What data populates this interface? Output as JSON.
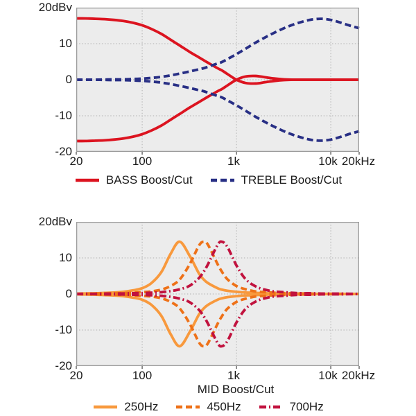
{
  "page": {
    "background": "#ffffff",
    "plot_bg": "#ececec",
    "grid_color": "#b0b0b0",
    "border_color": "#9b9b9b",
    "text_color": "#1a1a1a"
  },
  "chart_data": [
    {
      "type": "line",
      "name": "bass-treble-response",
      "title": "",
      "xlabel": "",
      "x_scale": "log",
      "x_unit": "Hz",
      "y_unit": "dBv",
      "x_range": [
        20,
        20000
      ],
      "y_range": [
        -20,
        20
      ],
      "grid": {
        "on": true,
        "style": "dotted",
        "x_values": [
          100,
          1000,
          10000
        ],
        "y_values": [
          10,
          0,
          -10
        ]
      },
      "y_ticks": [
        {
          "value": 20,
          "label": "20dBv"
        },
        {
          "value": 10,
          "label": "10"
        },
        {
          "value": 0,
          "label": "0"
        },
        {
          "value": -10,
          "label": "-10"
        },
        {
          "value": -20,
          "label": "-20"
        }
      ],
      "x_ticks": [
        {
          "value": 20,
          "label": "20"
        },
        {
          "value": 100,
          "label": "100"
        },
        {
          "value": 1000,
          "label": "1k"
        },
        {
          "value": 10000,
          "label": "10k"
        },
        {
          "value": 20000,
          "label": "20kHz"
        }
      ],
      "legend_position": "bottom",
      "legend": [
        {
          "label": "BASS Boost/Cut",
          "color": "#dc1420",
          "line": "solid"
        },
        {
          "label": "TREBLE Boost/Cut",
          "color": "#282f85",
          "line": "dashed"
        }
      ],
      "x": [
        20,
        25,
        32,
        40,
        50,
        63,
        80,
        100,
        125,
        160,
        200,
        250,
        320,
        400,
        450,
        500,
        630,
        700,
        800,
        1000,
        1250,
        1600,
        2000,
        2500,
        3200,
        4000,
        5000,
        6300,
        8000,
        10000,
        12500,
        16000,
        20000
      ],
      "series": [
        {
          "name": "BASS boost",
          "color": "#dc1420",
          "line": "solid",
          "values": [
            17,
            17,
            16.9,
            16.8,
            16.6,
            16.3,
            15.8,
            15.1,
            14.1,
            12.7,
            11.1,
            9.5,
            7.7,
            6.2,
            5.4,
            4.7,
            3.2,
            2.6,
            1.6,
            0,
            -0.9,
            -1.05,
            -0.7,
            -0.35,
            -0.1,
            0,
            0,
            0,
            0,
            0,
            0,
            0,
            0
          ]
        },
        {
          "name": "BASS cut",
          "color": "#dc1420",
          "line": "solid",
          "values": [
            -17,
            -17,
            -16.9,
            -16.8,
            -16.6,
            -16.3,
            -15.8,
            -15.1,
            -14.1,
            -12.7,
            -11.1,
            -9.5,
            -7.7,
            -6.2,
            -5.4,
            -4.7,
            -3.2,
            -2.6,
            -1.6,
            0,
            0.9,
            1.05,
            0.7,
            0.35,
            0.1,
            0,
            0,
            0,
            0,
            0,
            0,
            0,
            0
          ]
        },
        {
          "name": "TREBLE boost",
          "color": "#282f85",
          "line": "dashed",
          "values": [
            0,
            0,
            0,
            0.05,
            0.1,
            0.1,
            0.2,
            0.3,
            0.5,
            0.8,
            1.2,
            1.7,
            2.3,
            2.9,
            3.2,
            3.6,
            4.5,
            4.9,
            5.7,
            7.1,
            8.6,
            10.3,
            11.7,
            13,
            14.3,
            15.3,
            16.1,
            16.7,
            16.9,
            16.6,
            15.9,
            15,
            14.3
          ]
        },
        {
          "name": "TREBLE cut",
          "color": "#282f85",
          "line": "dashed",
          "values": [
            0,
            0,
            0,
            -0.05,
            -0.1,
            -0.1,
            -0.2,
            -0.3,
            -0.5,
            -0.8,
            -1.2,
            -1.7,
            -2.3,
            -2.9,
            -3.2,
            -3.6,
            -4.5,
            -4.9,
            -5.7,
            -7.1,
            -8.6,
            -10.3,
            -11.7,
            -13,
            -14.3,
            -15.3,
            -16.1,
            -16.7,
            -16.9,
            -16.6,
            -15.9,
            -15,
            -14.3
          ]
        }
      ]
    },
    {
      "type": "line",
      "name": "mid-response",
      "title": "",
      "xlabel": "MID Boost/Cut",
      "x_scale": "log",
      "x_unit": "Hz",
      "y_unit": "dBv",
      "x_range": [
        20,
        20000
      ],
      "y_range": [
        -20,
        20
      ],
      "grid": {
        "on": true,
        "style": "dotted",
        "x_values": [
          100,
          1000,
          10000
        ],
        "y_values": [
          10,
          0,
          -10
        ]
      },
      "y_ticks": [
        {
          "value": 20,
          "label": "20dBv"
        },
        {
          "value": 10,
          "label": "10"
        },
        {
          "value": 0,
          "label": "0"
        },
        {
          "value": -10,
          "label": "-10"
        },
        {
          "value": -20,
          "label": "-20"
        }
      ],
      "x_ticks": [
        {
          "value": 20,
          "label": "20"
        },
        {
          "value": 100,
          "label": "100"
        },
        {
          "value": 1000,
          "label": "1k"
        },
        {
          "value": 10000,
          "label": "10k"
        },
        {
          "value": 20000,
          "label": "20kHz"
        }
      ],
      "legend_position": "bottom",
      "legend": [
        {
          "label": "250Hz",
          "color": "#f8993d",
          "line": "solid"
        },
        {
          "label": "450Hz",
          "color": "#ee7118",
          "line": "dashed"
        },
        {
          "label": "700Hz",
          "color": "#c1123e",
          "line": "dashdot"
        }
      ],
      "x": [
        20,
        25,
        32,
        40,
        50,
        63,
        80,
        100,
        125,
        160,
        200,
        250,
        320,
        400,
        450,
        500,
        630,
        700,
        800,
        1000,
        1250,
        1600,
        2000,
        2500,
        3200,
        4000,
        5000,
        6300,
        8000,
        10000,
        12500,
        16000,
        20000
      ],
      "series": [
        {
          "name": "250Hz boost",
          "color": "#f8993d",
          "line": "solid",
          "values": [
            0.1,
            0.15,
            0.2,
            0.3,
            0.4,
            0.6,
            1,
            1.6,
            3,
            6.1,
            11.1,
            14.5,
            10.5,
            5.7,
            4,
            3,
            1.6,
            1.2,
            0.9,
            0.6,
            0.4,
            0.3,
            0.2,
            0.15,
            0.1,
            0.1,
            0.05,
            0.05,
            0,
            0,
            0,
            0,
            0
          ]
        },
        {
          "name": "250Hz cut",
          "color": "#f8993d",
          "line": "solid",
          "values": [
            -0.1,
            -0.15,
            -0.2,
            -0.3,
            -0.4,
            -0.6,
            -1,
            -1.6,
            -3,
            -6.1,
            -11.1,
            -14.5,
            -10.5,
            -5.7,
            -4,
            -3,
            -1.6,
            -1.2,
            -0.9,
            -0.6,
            -0.4,
            -0.3,
            -0.2,
            -0.15,
            -0.1,
            -0.1,
            -0.05,
            -0.05,
            0,
            0,
            0,
            0,
            0
          ]
        },
        {
          "name": "450Hz boost",
          "color": "#ee7118",
          "line": "dashed",
          "values": [
            0.05,
            0.1,
            0.1,
            0.15,
            0.2,
            0.25,
            0.35,
            0.5,
            0.7,
            1.2,
            2.2,
            4,
            8.3,
            13.4,
            14.5,
            13.6,
            8.3,
            6.2,
            4.1,
            2.2,
            1.3,
            0.7,
            0.5,
            0.35,
            0.25,
            0.2,
            0.15,
            0.1,
            0.1,
            0.05,
            0.05,
            0,
            0
          ]
        },
        {
          "name": "450Hz cut",
          "color": "#ee7118",
          "line": "dashed",
          "values": [
            -0.05,
            -0.1,
            -0.1,
            -0.15,
            -0.2,
            -0.25,
            -0.35,
            -0.5,
            -0.7,
            -1.2,
            -2.2,
            -4,
            -8.3,
            -13.4,
            -14.5,
            -13.6,
            -8.3,
            -6.2,
            -4.1,
            -2.2,
            -1.3,
            -0.7,
            -0.5,
            -0.35,
            -0.25,
            -0.2,
            -0.15,
            -0.1,
            -0.1,
            -0.05,
            -0.05,
            0,
            0
          ]
        },
        {
          "name": "700Hz boost",
          "color": "#c1123e",
          "line": "dashdot",
          "values": [
            0,
            0.05,
            0.05,
            0.1,
            0.1,
            0.15,
            0.2,
            0.25,
            0.35,
            0.5,
            0.8,
            1.3,
            2.3,
            4.4,
            6.2,
            8.3,
            13.6,
            14.5,
            13.1,
            7.9,
            4.1,
            2.1,
            1.2,
            0.7,
            0.5,
            0.3,
            0.2,
            0.2,
            0.1,
            0.1,
            0.1,
            0.05,
            0
          ]
        },
        {
          "name": "700Hz cut",
          "color": "#c1123e",
          "line": "dashdot",
          "values": [
            0,
            -0.05,
            -0.05,
            -0.1,
            -0.1,
            -0.15,
            -0.2,
            -0.25,
            -0.35,
            -0.5,
            -0.8,
            -1.3,
            -2.3,
            -4.4,
            -6.2,
            -8.3,
            -13.6,
            -14.5,
            -13.1,
            -7.9,
            -4.1,
            -2.1,
            -1.2,
            -0.7,
            -0.5,
            -0.3,
            -0.2,
            -0.2,
            -0.1,
            -0.1,
            -0.1,
            -0.05,
            0
          ]
        }
      ]
    }
  ]
}
